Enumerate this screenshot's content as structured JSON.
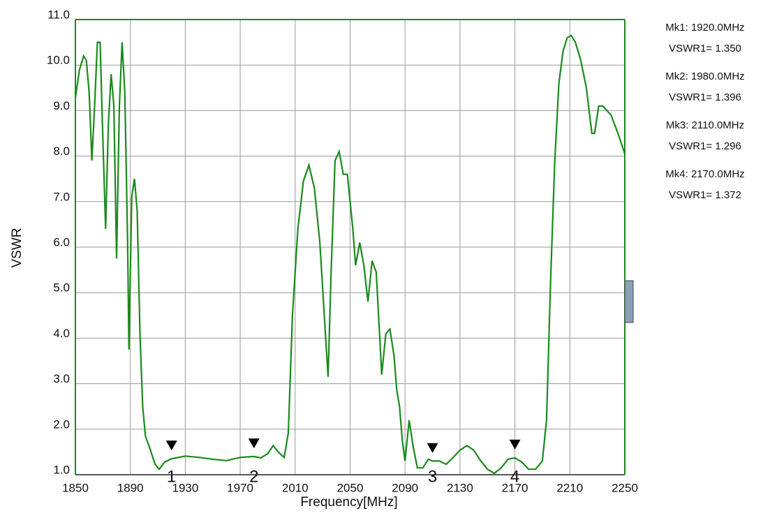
{
  "chart_data": {
    "type": "line",
    "xlabel": "Frequency[MHz]",
    "ylabel": "VSWR",
    "xlim": [
      1850,
      2250
    ],
    "ylim": [
      1,
      11
    ],
    "xticks": [
      1850,
      1890,
      1930,
      1970,
      2010,
      2050,
      2090,
      2130,
      2170,
      2210,
      2250
    ],
    "yticks": [
      {
        "value": 1,
        "label": "1.0"
      },
      {
        "value": 2,
        "label": "2.0"
      },
      {
        "value": 3,
        "label": "3.0"
      },
      {
        "value": 4,
        "label": "4.0"
      },
      {
        "value": 5,
        "label": "5.0"
      },
      {
        "value": 6,
        "label": "6.0"
      },
      {
        "value": 7,
        "label": "7.0"
      },
      {
        "value": 8,
        "label": "8.0"
      },
      {
        "value": 9,
        "label": "9.0"
      },
      {
        "value": 10,
        "label": "10.0"
      },
      {
        "value": 11,
        "label": "11.0"
      }
    ],
    "grid": true,
    "x": [
      1850,
      1853,
      1856,
      1858,
      1860,
      1862,
      1864,
      1866,
      1868,
      1870,
      1872,
      1874,
      1876,
      1878,
      1880,
      1882,
      1884,
      1886,
      1888,
      1889,
      1891,
      1893,
      1895,
      1897,
      1899,
      1901,
      1904,
      1908,
      1911,
      1915,
      1920,
      1930,
      1940,
      1950,
      1960,
      1970,
      1980,
      1985,
      1990,
      1994,
      1998,
      2002,
      2005,
      2008,
      2012,
      2016,
      2020,
      2024,
      2028,
      2032,
      2034,
      2036,
      2039,
      2042,
      2045,
      2048,
      2052,
      2054,
      2057,
      2060,
      2063,
      2066,
      2069,
      2071,
      2073,
      2076,
      2079,
      2082,
      2084,
      2086,
      2088,
      2090,
      2093,
      2096,
      2099,
      2103,
      2107,
      2110,
      2115,
      2120,
      2125,
      2130,
      2135,
      2140,
      2145,
      2150,
      2155,
      2160,
      2165,
      2170,
      2175,
      2180,
      2185,
      2190,
      2193,
      2196,
      2199,
      2202,
      2205,
      2208,
      2211,
      2214,
      2218,
      2222,
      2226,
      2228,
      2231,
      2234,
      2240,
      2245,
      2250
    ],
    "series": [
      {
        "color": "#1a8a1a",
        "values": [
          9.28,
          9.9,
          10.2,
          10.1,
          9.4,
          7.9,
          9.1,
          10.5,
          10.5,
          8.4,
          6.4,
          8.7,
          9.8,
          9.1,
          5.75,
          9.1,
          10.5,
          9.4,
          6.1,
          3.75,
          7.1,
          7.5,
          6.8,
          4.1,
          2.5,
          1.85,
          1.6,
          1.23,
          1.12,
          1.28,
          1.35,
          1.41,
          1.38,
          1.34,
          1.31,
          1.38,
          1.4,
          1.37,
          1.46,
          1.64,
          1.49,
          1.38,
          1.92,
          4.5,
          6.4,
          7.45,
          7.8,
          7.3,
          6.1,
          4.1,
          3.15,
          5.3,
          7.9,
          8.1,
          7.6,
          7.6,
          6.4,
          5.6,
          6.1,
          5.6,
          4.8,
          5.7,
          5.45,
          4.35,
          3.2,
          4.1,
          4.2,
          3.6,
          2.85,
          2.5,
          1.75,
          1.3,
          2.2,
          1.6,
          1.15,
          1.15,
          1.34,
          1.3,
          1.3,
          1.23,
          1.38,
          1.54,
          1.64,
          1.54,
          1.31,
          1.12,
          1.03,
          1.15,
          1.34,
          1.37,
          1.28,
          1.12,
          1.12,
          1.3,
          2.2,
          5.3,
          7.9,
          9.6,
          10.3,
          10.6,
          10.65,
          10.5,
          10.1,
          9.5,
          8.5,
          8.5,
          9.1,
          9.1,
          8.9,
          8.5,
          8.05
        ]
      }
    ],
    "markers": [
      {
        "label": "1",
        "x": 1920,
        "y": 1.35,
        "readout": [
          "Mk1: 1920.0MHz",
          "VSWR1= 1.350"
        ]
      },
      {
        "label": "2",
        "x": 1980,
        "y": 1.396,
        "readout": [
          "Mk2: 1980.0MHz",
          "VSWR1= 1.396"
        ]
      },
      {
        "label": "3",
        "x": 2110,
        "y": 1.296,
        "readout": [
          "Mk3: 2110.0MHz",
          "VSWR1= 1.296"
        ]
      },
      {
        "label": "4",
        "x": 2170,
        "y": 1.372,
        "readout": [
          "Mk4: 2170.0MHz",
          "VSWR1= 1.372"
        ]
      }
    ]
  }
}
